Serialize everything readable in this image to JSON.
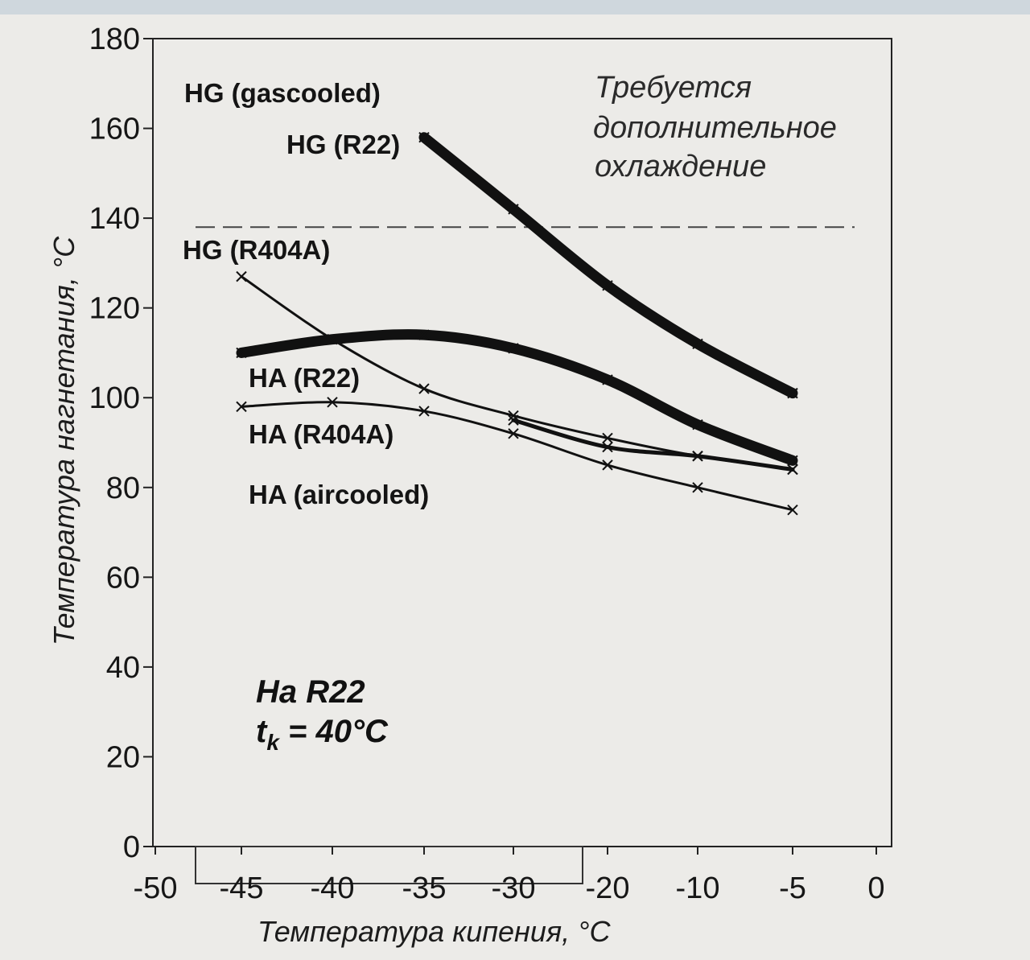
{
  "chart_data": {
    "type": "line",
    "xlabel": "Температура кипения, °С",
    "ylabel": "Температура нагнетания, °С",
    "ylim": [
      0,
      180
    ],
    "y_ticks": [
      0,
      20,
      40,
      60,
      80,
      100,
      120,
      140,
      160,
      180
    ],
    "x_ticks": [
      {
        "label": "-50",
        "value": -50
      },
      {
        "label": "-45",
        "value": -45
      },
      {
        "label": "-40",
        "value": -40
      },
      {
        "label": "-35",
        "value": -35
      },
      {
        "label": "-30",
        "value": -30
      },
      {
        "label": "-20",
        "value": -20
      },
      {
        "label": "-10",
        "value": -10
      },
      {
        "label": "-5",
        "value": -5
      },
      {
        "label": "0",
        "value": 0
      }
    ],
    "grid": false,
    "threshold": {
      "y": 138,
      "style": "dashed"
    },
    "series": [
      {
        "name": "HG (R22)",
        "weight": "thick",
        "x": [
          -35,
          -30,
          -20,
          -10,
          -5
        ],
        "y": [
          158,
          142,
          125,
          112,
          101
        ]
      },
      {
        "name": "HG (R404A)",
        "weight": "thin",
        "x": [
          -45,
          -40,
          -35,
          -30,
          -20,
          -10,
          -5
        ],
        "y": [
          127,
          113,
          102,
          96,
          91,
          87,
          84
        ]
      },
      {
        "name": "HA (R22)",
        "weight": "thick",
        "x": [
          -45,
          -40,
          -35,
          -30,
          -20,
          -10,
          -5
        ],
        "y": [
          110,
          113,
          114,
          111,
          104,
          94,
          86
        ]
      },
      {
        "name": "HA (R404A)",
        "weight": "medium",
        "x": [
          -30,
          -20,
          -10,
          -5
        ],
        "y": [
          95,
          89,
          87,
          84
        ]
      },
      {
        "name": "HA (aircooled)",
        "weight": "thin",
        "x": [
          -45,
          -40,
          -35,
          -30,
          -20,
          -10,
          -5
        ],
        "y": [
          98,
          99,
          97,
          92,
          85,
          80,
          75
        ]
      }
    ],
    "labels": {
      "hg_gascooled": "HG (gascooled)",
      "hg_r22": "HG (R22)",
      "hg_r404a": "HG (R404A)",
      "ha_r22": "HA (R22)",
      "ha_r404a": "HA (R404A)",
      "ha_aircooled": "HA (aircooled)"
    },
    "annotation": [
      "Требуется",
      "дополнительное",
      "охлаждение"
    ],
    "condition": {
      "refrigerant": "На R22",
      "tk_symbol": "t",
      "tk_sub": "k",
      "tk_value": " = 40°C"
    }
  }
}
